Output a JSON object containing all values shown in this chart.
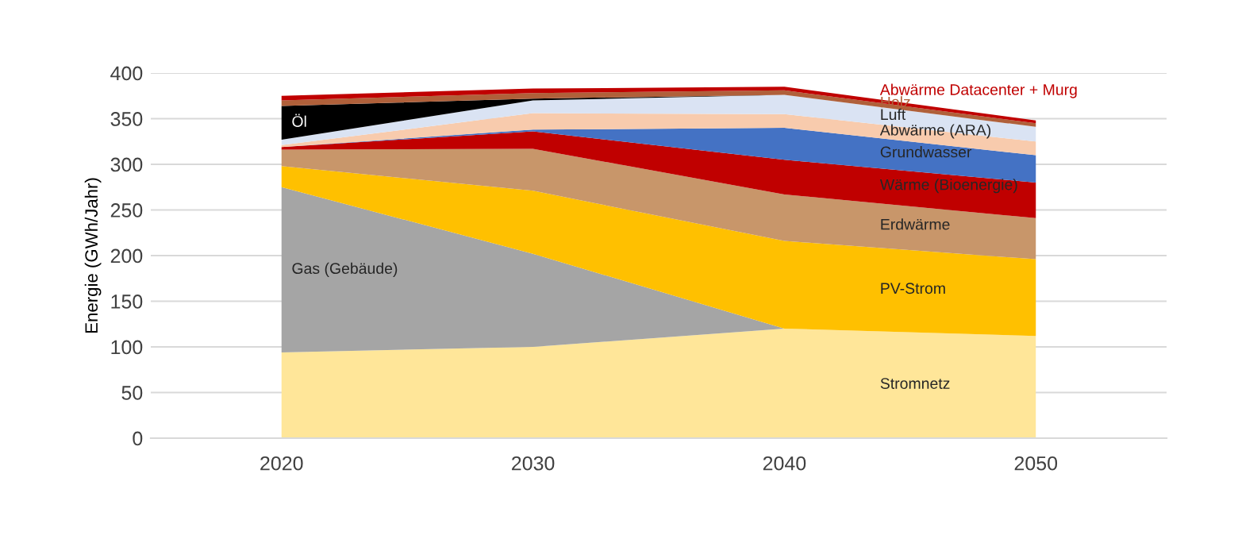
{
  "chart_data": {
    "type": "area",
    "stacked": true,
    "ylabel": "Energie (GWh/Jahr)",
    "categories": [
      "2020",
      "2030",
      "2040",
      "2050"
    ],
    "ylim": [
      0,
      400
    ],
    "yticks": [
      0,
      50,
      100,
      150,
      200,
      250,
      300,
      350,
      400
    ],
    "grid": "y",
    "legend": false,
    "series": [
      {
        "name": "Stromnetz",
        "color": "#ffe699",
        "values": [
          94,
          100,
          120,
          112
        ]
      },
      {
        "name": "Gas (Gebäude)",
        "color": "#a5a5a5",
        "values": [
          181,
          102,
          0,
          0
        ]
      },
      {
        "name": "PV-Strom",
        "color": "#ffc000",
        "values": [
          23,
          69,
          96,
          84
        ]
      },
      {
        "name": "Erdwärme",
        "color": "#c8966a",
        "values": [
          18,
          46,
          51,
          45
        ]
      },
      {
        "name": "Wärme (Bioenergie)",
        "color": "#c00000",
        "values": [
          3,
          19,
          38,
          39
        ]
      },
      {
        "name": "Grundwasser",
        "color": "#4472c4",
        "values": [
          0,
          2,
          35,
          30
        ]
      },
      {
        "name": "Abwärme (ARA)",
        "color": "#f8cbad",
        "values": [
          2,
          18,
          15,
          15
        ]
      },
      {
        "name": "Luft",
        "color": "#dae3f3",
        "values": [
          6,
          14,
          21,
          16
        ]
      },
      {
        "name": "Öl",
        "color": "#000000",
        "values": [
          37,
          2,
          0,
          0
        ]
      },
      {
        "name": "Holz",
        "color": "#b0603a",
        "values": [
          6,
          6,
          5,
          4
        ]
      },
      {
        "name": "Abwärme Datacenter + Murg",
        "color": "#c00000",
        "values": [
          5,
          5,
          4,
          3
        ]
      }
    ]
  }
}
